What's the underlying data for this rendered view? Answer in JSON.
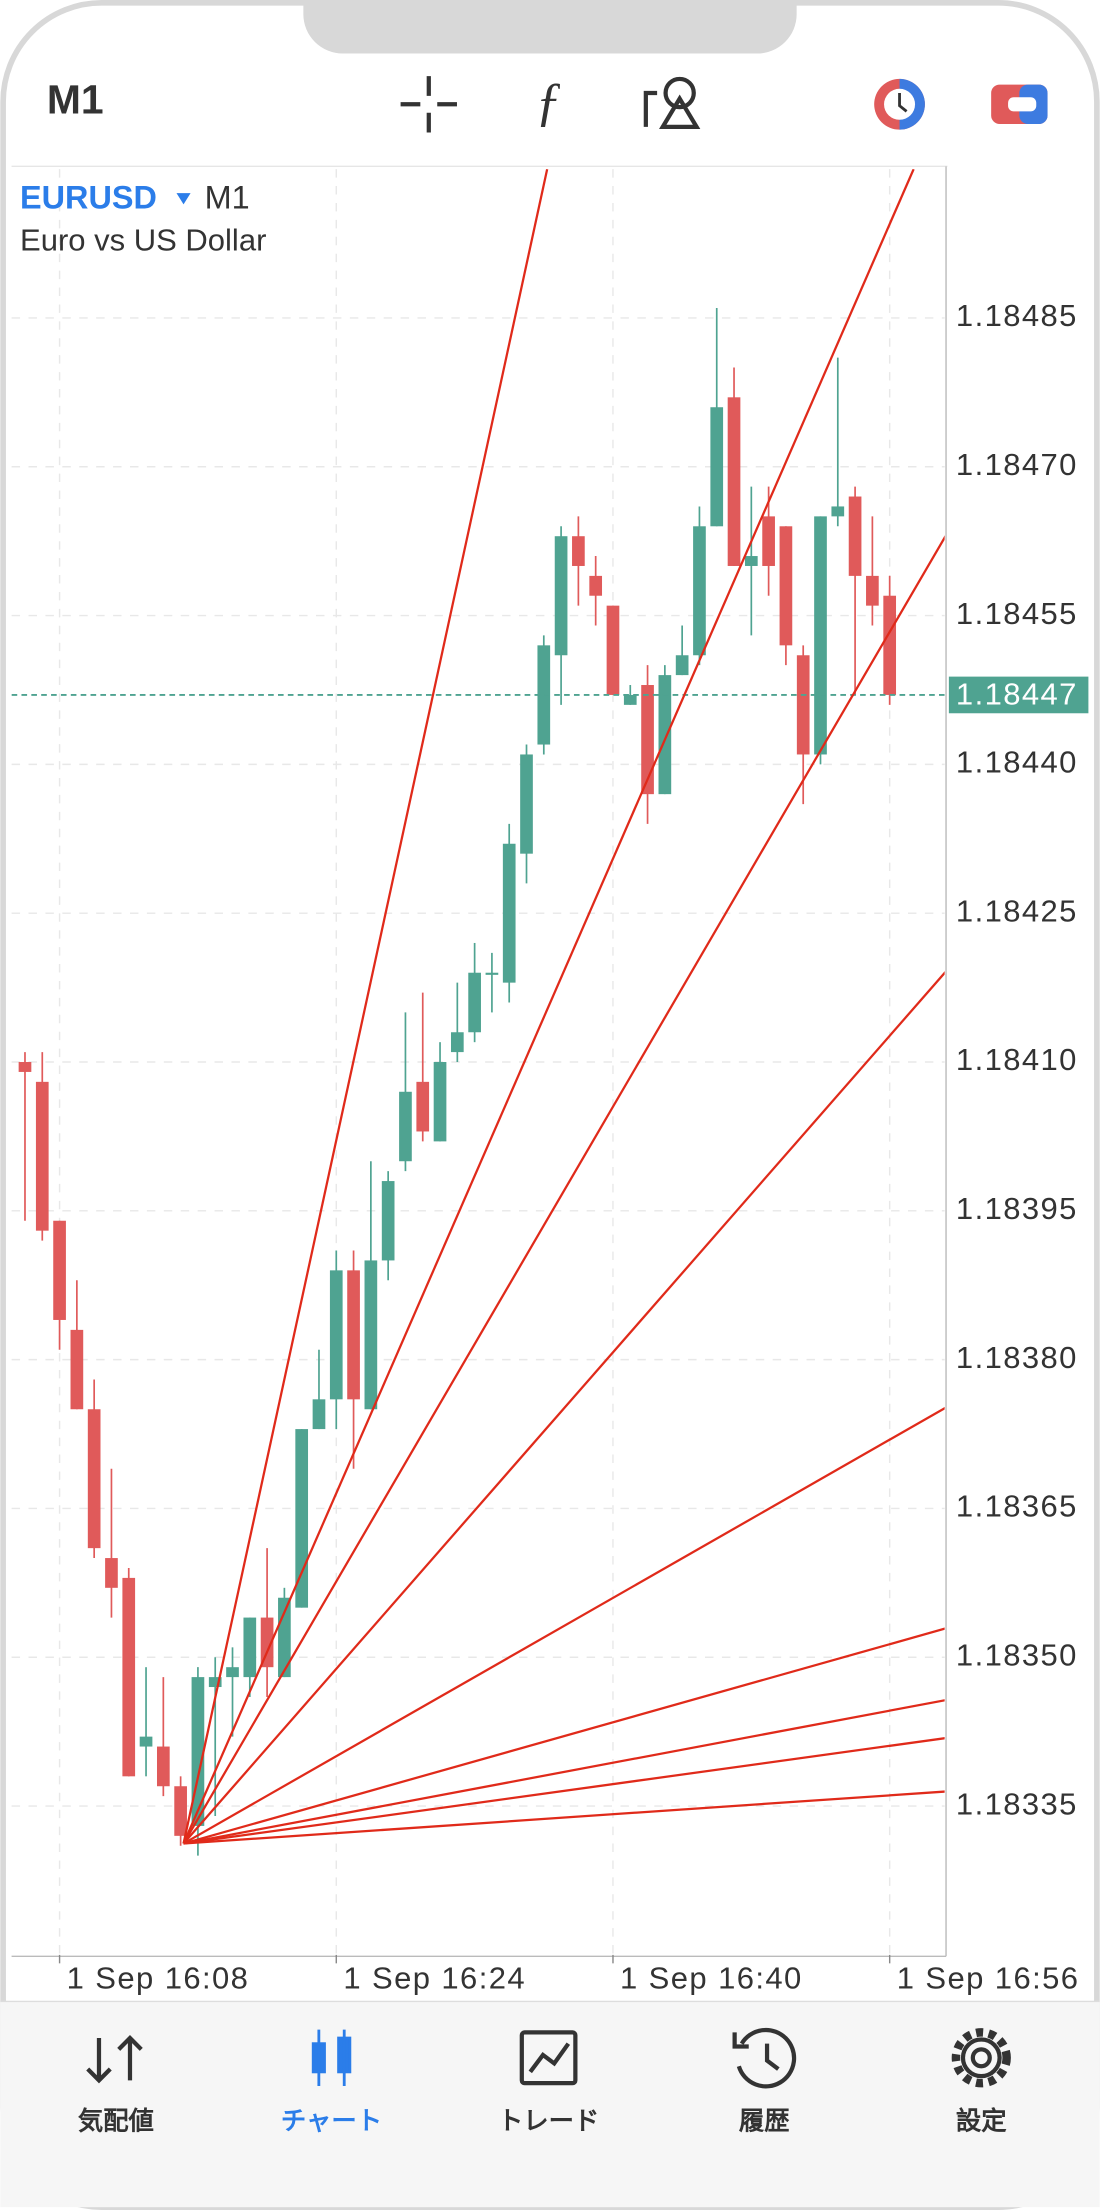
{
  "ui": {
    "timeframe_button": "M1",
    "tabs": [
      "気配値",
      "チャート",
      "トレード",
      "履歴",
      "設定"
    ]
  },
  "chart_data": {
    "type": "candlestick",
    "title": "EURUSD",
    "timeframe": "M1",
    "subtitle": "Euro vs US Dollar",
    "up_color": "#4fa391",
    "down_color": "#e05a5a",
    "grid": true,
    "x": [
      "1 Sep 16:06",
      "1 Sep 16:07",
      "1 Sep 16:08",
      "1 Sep 16:09",
      "1 Sep 16:10",
      "1 Sep 16:11",
      "1 Sep 16:12",
      "1 Sep 16:13",
      "1 Sep 16:14",
      "1 Sep 16:15",
      "1 Sep 16:16",
      "1 Sep 16:17",
      "1 Sep 16:18",
      "1 Sep 16:19",
      "1 Sep 16:20",
      "1 Sep 16:21",
      "1 Sep 16:22",
      "1 Sep 16:23",
      "1 Sep 16:24",
      "1 Sep 16:25",
      "1 Sep 16:26",
      "1 Sep 16:27",
      "1 Sep 16:28",
      "1 Sep 16:29",
      "1 Sep 16:30",
      "1 Sep 16:31",
      "1 Sep 16:32",
      "1 Sep 16:33",
      "1 Sep 16:34",
      "1 Sep 16:35",
      "1 Sep 16:36",
      "1 Sep 16:37",
      "1 Sep 16:38",
      "1 Sep 16:39",
      "1 Sep 16:40",
      "1 Sep 16:41",
      "1 Sep 16:42",
      "1 Sep 16:43",
      "1 Sep 16:44",
      "1 Sep 16:45",
      "1 Sep 16:46",
      "1 Sep 16:47",
      "1 Sep 16:48",
      "1 Sep 16:49",
      "1 Sep 16:50",
      "1 Sep 16:51",
      "1 Sep 16:52",
      "1 Sep 16:53",
      "1 Sep 16:54",
      "1 Sep 16:55",
      "1 Sep 16:56"
    ],
    "open": [
      1.1841,
      1.18408,
      1.18394,
      1.18383,
      1.18375,
      1.1836,
      1.18358,
      1.18341,
      1.18341,
      1.18337,
      1.18333,
      1.18347,
      1.18348,
      1.18348,
      1.18354,
      1.18348,
      1.18355,
      1.18373,
      1.18376,
      1.18389,
      1.18375,
      1.1839,
      1.184,
      1.18408,
      1.18402,
      1.18411,
      1.18413,
      1.18419,
      1.18418,
      1.18431,
      1.18442,
      1.18451,
      1.18463,
      1.18459,
      1.18456,
      1.18446,
      1.18448,
      1.18437,
      1.18449,
      1.18451,
      1.18464,
      1.18477,
      1.1846,
      1.18465,
      1.18464,
      1.18451,
      1.18441,
      1.18465,
      1.18467,
      1.18459,
      1.18457
    ],
    "high": [
      1.18411,
      1.18411,
      1.18394,
      1.18388,
      1.18378,
      1.18369,
      1.18359,
      1.18349,
      1.18348,
      1.18338,
      1.18349,
      1.1835,
      1.18351,
      1.18354,
      1.18361,
      1.18357,
      1.18373,
      1.18381,
      1.18391,
      1.18391,
      1.184,
      1.18399,
      1.18415,
      1.18417,
      1.18412,
      1.18418,
      1.18422,
      1.18421,
      1.18434,
      1.18442,
      1.18453,
      1.18464,
      1.18465,
      1.18461,
      1.18456,
      1.18448,
      1.1845,
      1.1845,
      1.18454,
      1.18466,
      1.18486,
      1.1848,
      1.18468,
      1.18468,
      1.18464,
      1.18452,
      1.18465,
      1.18481,
      1.18468,
      1.18465,
      1.18459
    ],
    "low": [
      1.18394,
      1.18392,
      1.18381,
      1.18375,
      1.1836,
      1.18354,
      1.18338,
      1.18338,
      1.18336,
      1.18331,
      1.1833,
      1.18334,
      1.18342,
      1.18346,
      1.18346,
      1.18348,
      1.18355,
      1.18373,
      1.18373,
      1.18369,
      1.18375,
      1.18388,
      1.18399,
      1.18402,
      1.18402,
      1.1841,
      1.18412,
      1.18415,
      1.18416,
      1.18428,
      1.18441,
      1.18446,
      1.18456,
      1.18454,
      1.18447,
      1.18446,
      1.18434,
      1.18437,
      1.18449,
      1.1845,
      1.18464,
      1.1846,
      1.18453,
      1.18457,
      1.1845,
      1.18436,
      1.1844,
      1.18464,
      1.18447,
      1.18454,
      1.18446
    ],
    "close": [
      1.18409,
      1.18393,
      1.18384,
      1.18375,
      1.18361,
      1.18357,
      1.18338,
      1.18342,
      1.18337,
      1.18332,
      1.18348,
      1.18348,
      1.18349,
      1.18354,
      1.18349,
      1.18356,
      1.18373,
      1.18376,
      1.18389,
      1.18376,
      1.1839,
      1.18398,
      1.18407,
      1.18403,
      1.1841,
      1.18413,
      1.18419,
      1.18419,
      1.18432,
      1.18441,
      1.18452,
      1.18463,
      1.1846,
      1.18457,
      1.18447,
      1.18447,
      1.18437,
      1.18449,
      1.18451,
      1.18464,
      1.18476,
      1.1846,
      1.18461,
      1.1846,
      1.18452,
      1.18441,
      1.18465,
      1.18466,
      1.18459,
      1.18456,
      1.18447
    ],
    "ylim": [
      1.1832,
      1.185
    ],
    "yticks": [
      {
        "value": 1.18335,
        "label": "1.18335"
      },
      {
        "value": 1.1835,
        "label": "1.18350"
      },
      1.18365,
      {
        "value": 1.1838,
        "label": "1.18380"
      },
      1.18395,
      {
        "value": 1.1841,
        "label": "1.18410"
      },
      1.18425,
      {
        "value": 1.1844,
        "label": "1.18440"
      },
      1.18455,
      {
        "value": 1.1847,
        "label": "1.18470"
      },
      1.18485
    ],
    "xticks": [
      "1 Sep 16:08",
      "1 Sep 16:24",
      "1 Sep 16:40",
      "1 Sep 16:56"
    ],
    "current_price": 1.18447,
    "current_price_color": "#4fa391",
    "fan_color": "#e02a1a"
  }
}
